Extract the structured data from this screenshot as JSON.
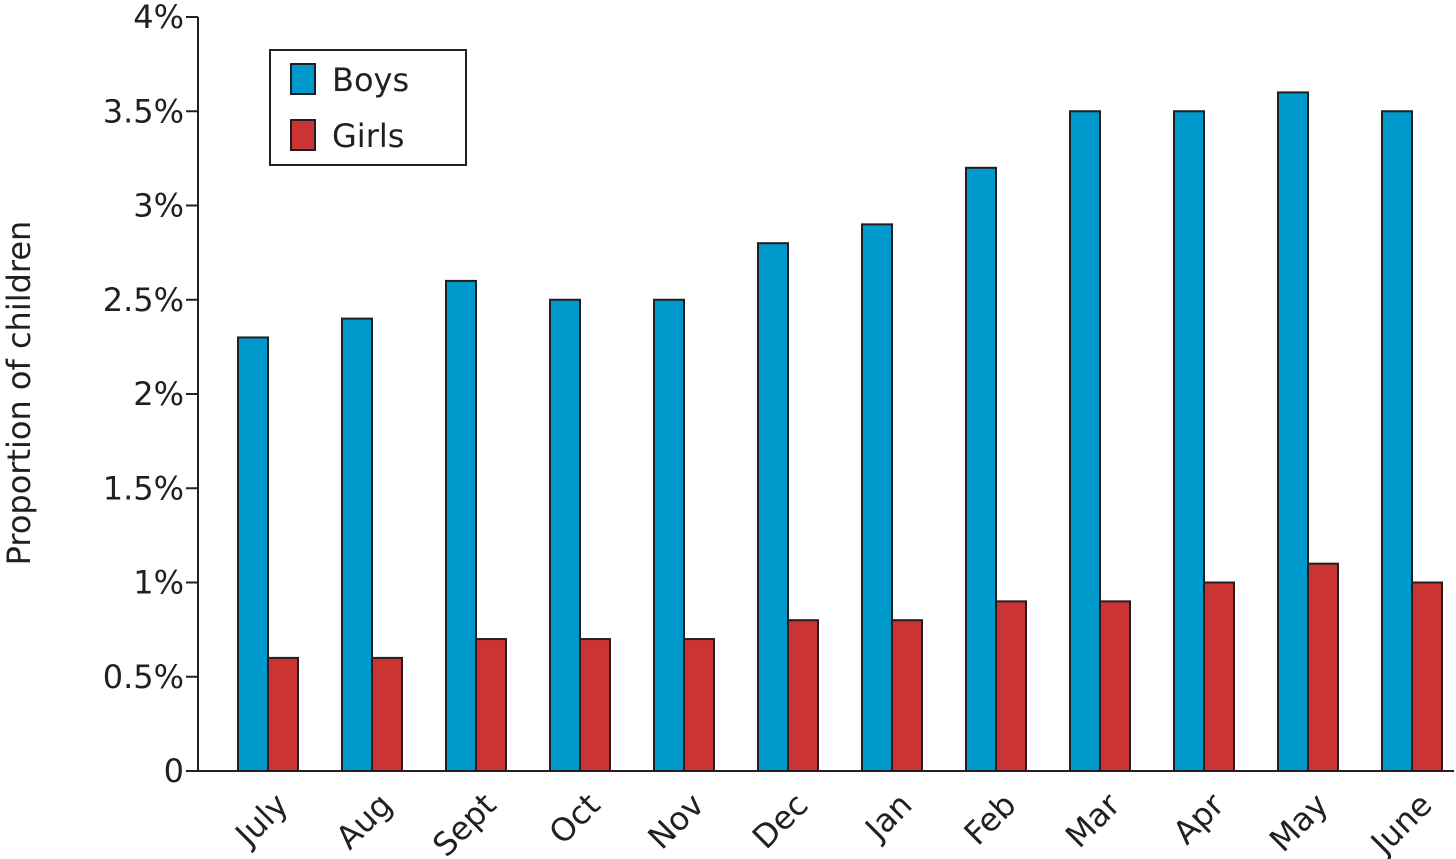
{
  "chart_data": {
    "type": "bar",
    "title": "",
    "xlabel": "",
    "ylabel": "Proportion of children",
    "categories": [
      "July",
      "Aug",
      "Sept",
      "Oct",
      "Nov",
      "Dec",
      "Jan",
      "Feb",
      "Mar",
      "Apr",
      "May",
      "June"
    ],
    "series": [
      {
        "name": "Boys",
        "values": [
          2.3,
          2.4,
          2.6,
          2.5,
          2.5,
          2.8,
          2.9,
          3.2,
          3.5,
          3.5,
          3.6,
          3.5
        ],
        "color": "#0099cc"
      },
      {
        "name": "Girls",
        "values": [
          0.6,
          0.6,
          0.7,
          0.7,
          0.7,
          0.8,
          0.8,
          0.9,
          0.9,
          1.0,
          1.1,
          1.0
        ],
        "color": "#cc3333"
      }
    ],
    "ylim": [
      0,
      4
    ],
    "yticks": [
      0,
      0.5,
      1,
      1.5,
      2,
      2.5,
      3,
      3.5,
      4
    ],
    "ytick_labels": [
      "0",
      "0.5%",
      "1%",
      "1.5%",
      "2%",
      "2.5%",
      "3%",
      "3.5%",
      "4%"
    ],
    "grid": false,
    "legend_position": "top-left"
  }
}
